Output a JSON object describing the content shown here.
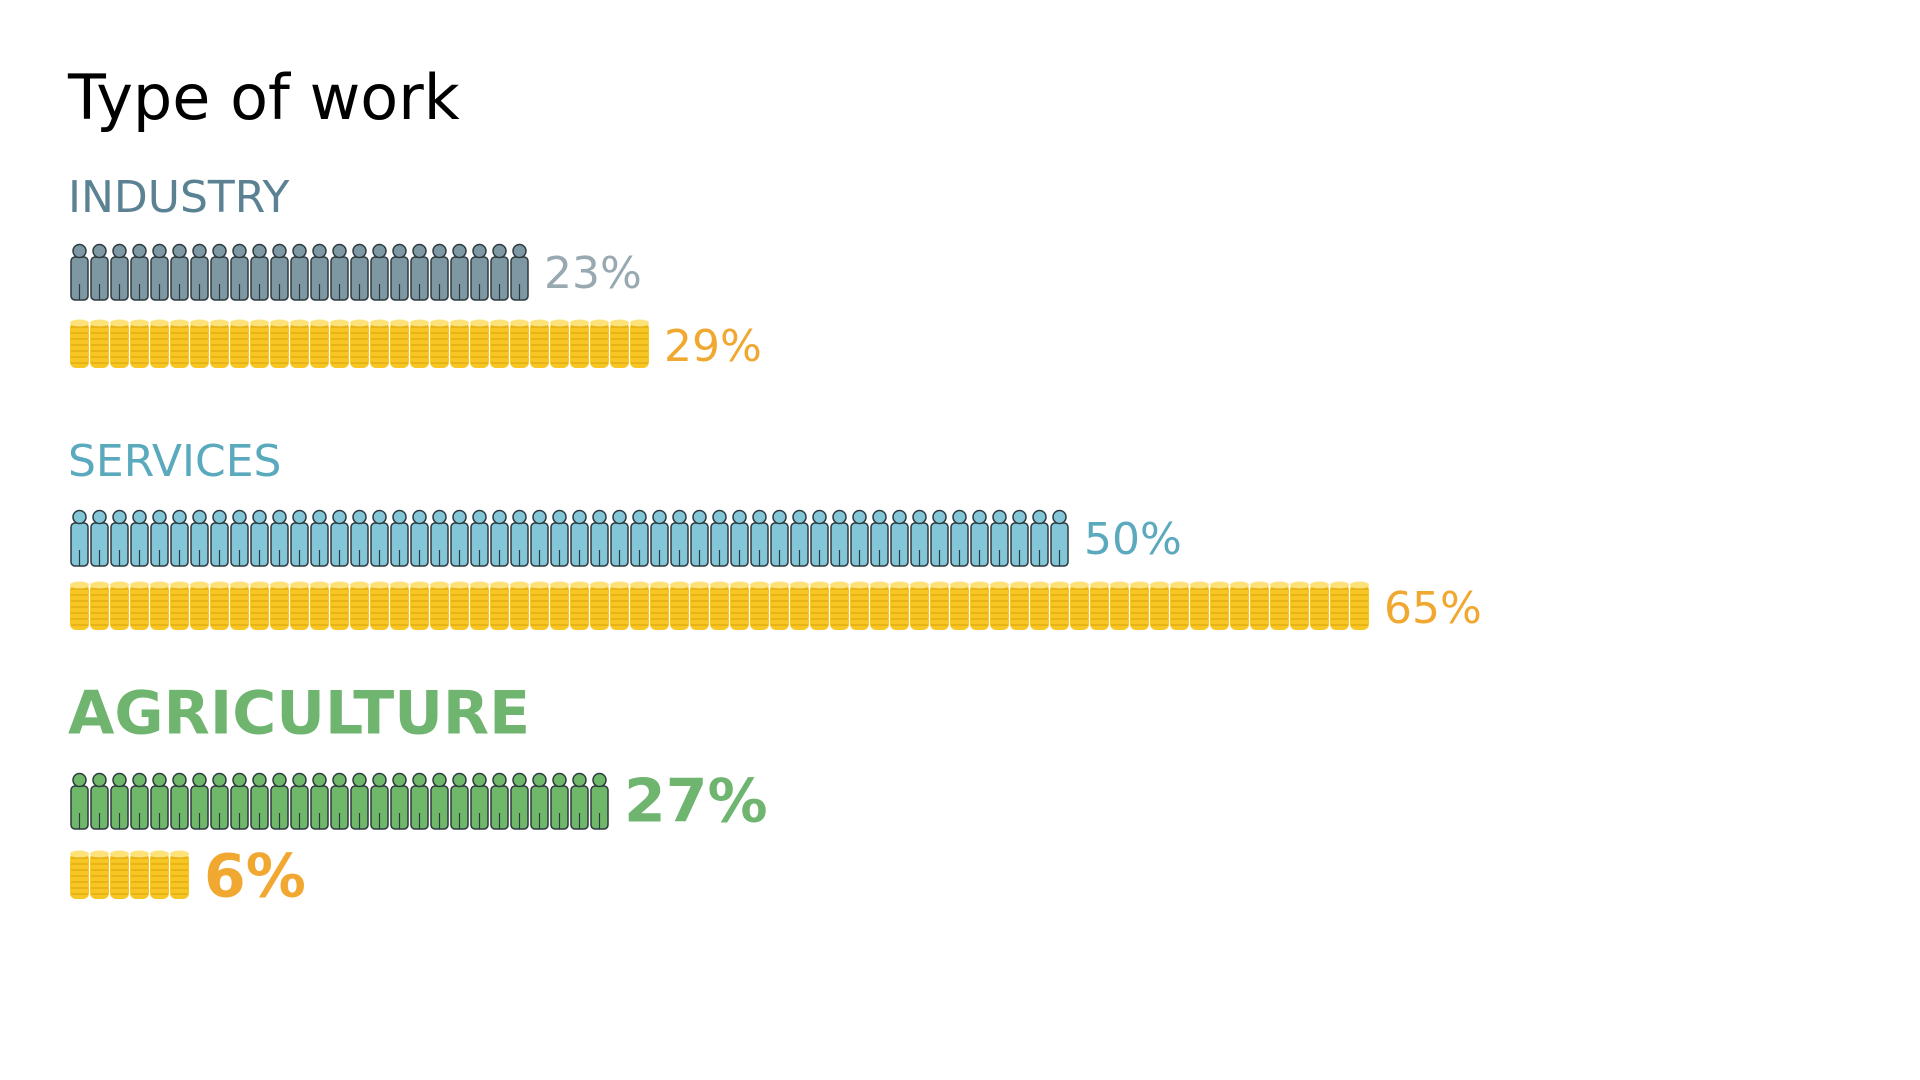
{
  "chart_data": {
    "type": "pictogram",
    "title": "Type of work",
    "categories": [
      "INDUSTRY",
      "SERVICES",
      "AGRICULTURE"
    ],
    "category_colors": [
      "#5b8293",
      "#5aa9bd",
      "#6fb56f"
    ],
    "highlight": 2,
    "series": [
      {
        "icon": "person",
        "colors": [
          "#7e98a3",
          "#82c6d8",
          "#6fb86a"
        ],
        "label_colors": [
          "#98a9b2",
          "#5aa9bd",
          "#6fb56f"
        ],
        "values": [
          23,
          50,
          27
        ],
        "value_labels": [
          "23%",
          "50%",
          "27%"
        ]
      },
      {
        "icon": "coins",
        "color": "#f7c623",
        "label_color": "#f0a830",
        "values": [
          29,
          65,
          6
        ],
        "value_labels": [
          "29%",
          "65%",
          "6%"
        ]
      }
    ]
  }
}
